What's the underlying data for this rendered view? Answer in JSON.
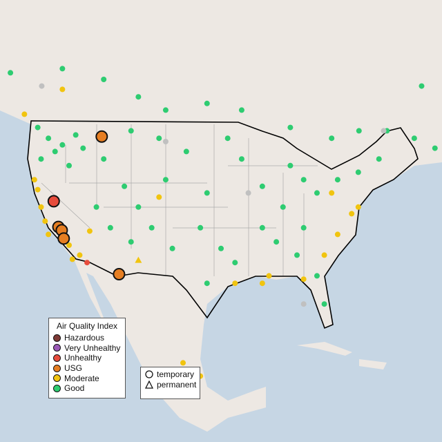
{
  "legend_aqi": {
    "title": "Air Quality Index",
    "items": [
      {
        "label": "Hazardous",
        "color": "#7e3a36"
      },
      {
        "label": "Very Unhealthy",
        "color": "#9b59b6"
      },
      {
        "label": "Unhealthy",
        "color": "#e74c3c"
      },
      {
        "label": "USG",
        "color": "#e67e22"
      },
      {
        "label": "Moderate",
        "color": "#f1c40f"
      },
      {
        "label": "Good",
        "color": "#2ecc71"
      }
    ]
  },
  "legend_type": {
    "items": [
      {
        "label": "temporary",
        "shape": "circle"
      },
      {
        "label": "permanent",
        "shape": "triangle"
      }
    ]
  },
  "colors": {
    "ocean": "#c6d6e4",
    "land": "#ede8e3",
    "nodata": "#c0c0c0",
    "g": "#2ecc71",
    "m": "#f1c40f",
    "o": "#e67e22",
    "r": "#e74c3c"
  },
  "sites_small": [
    [
      -123.5,
      48.2,
      "g"
    ],
    [
      -121.9,
      46.9,
      "g"
    ],
    [
      -119.8,
      46.1,
      "g"
    ],
    [
      -117.8,
      47.3,
      "g"
    ],
    [
      -123.0,
      44.4,
      "g"
    ],
    [
      -120.9,
      45.3,
      "g"
    ],
    [
      -118.8,
      43.6,
      "g"
    ],
    [
      -116.7,
      45.7,
      "g"
    ],
    [
      -127.6,
      54.8,
      "g"
    ],
    [
      -119.8,
      55.3,
      "g"
    ],
    [
      -113.6,
      54,
      "g"
    ],
    [
      -108.4,
      51.9,
      "g"
    ],
    [
      -104.3,
      50.3,
      "g"
    ],
    [
      -98.1,
      51.1,
      "g"
    ],
    [
      -92.9,
      50.3,
      "g"
    ],
    [
      -85.6,
      48.2,
      "g"
    ],
    [
      -79.4,
      46.9,
      "g"
    ],
    [
      -75.3,
      47.8,
      "g"
    ],
    [
      -71.1,
      47.8,
      "g"
    ],
    [
      -67,
      46.9,
      "g"
    ],
    [
      -63.9,
      45.7,
      "g"
    ],
    [
      -65.9,
      53.2,
      "g"
    ],
    [
      -119.8,
      52.8,
      "m"
    ],
    [
      -125.5,
      49.8,
      "m"
    ],
    [
      -124,
      41.9,
      "m"
    ],
    [
      -123.5,
      40.7,
      "m"
    ],
    [
      -123,
      38.6,
      "m"
    ],
    [
      -122.4,
      36.9,
      "m"
    ],
    [
      -121.9,
      35.3,
      "m"
    ],
    [
      -118.8,
      34,
      "m"
    ],
    [
      -117.2,
      32.8,
      "m"
    ],
    [
      -118.3,
      32.3,
      "m"
    ],
    [
      -113.6,
      44.4,
      "g"
    ],
    [
      -110.5,
      41.1,
      "g"
    ],
    [
      -108.4,
      38.6,
      "g"
    ],
    [
      -104.3,
      41.9,
      "g"
    ],
    [
      -106.4,
      36.1,
      "g"
    ],
    [
      -109.5,
      34.4,
      "g"
    ],
    [
      -112.6,
      36.1,
      "g"
    ],
    [
      -114.7,
      38.6,
      "g"
    ],
    [
      -101.2,
      45.3,
      "g"
    ],
    [
      -98.1,
      40.3,
      "g"
    ],
    [
      -99.1,
      36.1,
      "g"
    ],
    [
      -96,
      33.6,
      "g"
    ],
    [
      -98.1,
      29.4,
      "g"
    ],
    [
      -93.9,
      31.9,
      "g"
    ],
    [
      -92.9,
      44.4,
      "g"
    ],
    [
      -89.8,
      41.1,
      "g"
    ],
    [
      -86.7,
      38.6,
      "g"
    ],
    [
      -83.6,
      36.1,
      "g"
    ],
    [
      -81.6,
      40.3,
      "g"
    ],
    [
      -78.5,
      41.9,
      "g"
    ],
    [
      -75.4,
      42.8,
      "g"
    ],
    [
      -72.3,
      44.4,
      "g"
    ],
    [
      -87.7,
      34.4,
      "g"
    ],
    [
      -84.6,
      32.8,
      "g"
    ],
    [
      -89.8,
      36.1,
      "g"
    ],
    [
      -80.5,
      26.9,
      "g"
    ],
    [
      -81.6,
      30.3,
      "g"
    ],
    [
      -103.3,
      33.6,
      "g"
    ],
    [
      -105.3,
      46.9,
      "g"
    ],
    [
      -109.5,
      47.8,
      "g"
    ],
    [
      -95,
      46.9,
      "g"
    ],
    [
      -85.6,
      43.6,
      "g"
    ],
    [
      -83.6,
      41.9,
      "g"
    ],
    [
      -75.4,
      38.6,
      "m"
    ],
    [
      -76.4,
      37.8,
      "m"
    ],
    [
      -78.5,
      35.3,
      "m"
    ],
    [
      -79.4,
      40.3,
      "m"
    ],
    [
      -89.8,
      29.4,
      "m"
    ],
    [
      -88.8,
      30.3,
      "m"
    ],
    [
      -83.6,
      29.9,
      "m"
    ],
    [
      -80.5,
      32.8,
      "m"
    ],
    [
      -93.9,
      29.4,
      "m"
    ],
    [
      -105.3,
      39.8,
      "m"
    ],
    [
      -115.7,
      35.7,
      "m"
    ],
    [
      -71.6,
      47.8,
      "x"
    ],
    [
      -83.6,
      26.9,
      "x"
    ],
    [
      -91.9,
      40.3,
      "x"
    ],
    [
      -104.3,
      46.5,
      "x"
    ],
    [
      -122.9,
      53.2,
      "x"
    ],
    [
      -101.7,
      19.8,
      "m"
    ],
    [
      -101.2,
      18.6,
      "g"
    ],
    [
      -99.1,
      18.2,
      "m"
    ],
    [
      -116.1,
      31.9,
      "r"
    ]
  ],
  "sites_large": [
    [
      -113.9,
      47.1,
      "o"
    ],
    [
      -121.1,
      39.3,
      "r"
    ],
    [
      -120.4,
      36.2,
      "o"
    ],
    [
      -119.9,
      35.8,
      "o"
    ],
    [
      -119.6,
      34.8,
      "o"
    ],
    [
      -111.3,
      30.5,
      "o"
    ]
  ],
  "sites_permanent": [
    [
      -108.4,
      32.2,
      "m"
    ]
  ]
}
